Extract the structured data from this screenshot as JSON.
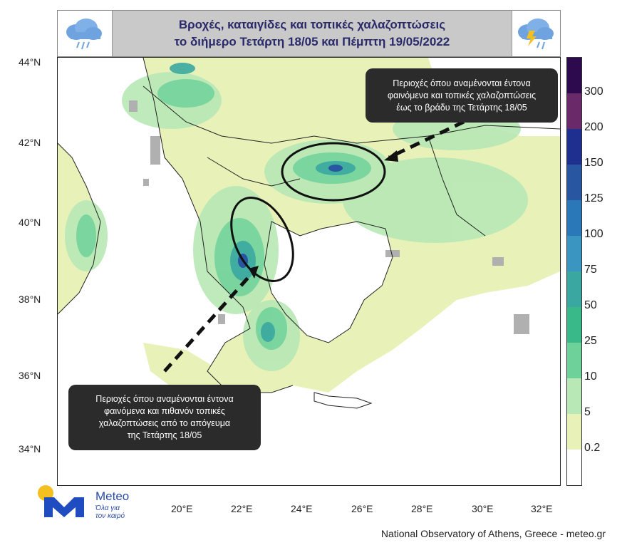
{
  "title": {
    "line1": "Βροχές, καταιγίδες και τοπικές χαλαζοπτώσεις",
    "line2": "το διήμερο Τετάρτη 18/05 και Πέμπτη 19/05/2022"
  },
  "icons": {
    "left": "rain-cloud-icon",
    "right": "storm-cloud-icon"
  },
  "axes": {
    "latitudes": [
      "44°N",
      "42°N",
      "40°N",
      "38°N",
      "36°N",
      "34°N"
    ],
    "longitudes": [
      "20°E",
      "22°E",
      "24°E",
      "26°E",
      "28°E",
      "30°E",
      "32°E"
    ]
  },
  "colorbar": {
    "labels": [
      "300",
      "200",
      "150",
      "125",
      "100",
      "75",
      "50",
      "25",
      "10",
      "5",
      "0.2"
    ],
    "colors": [
      "#2d0a4e",
      "#6a2a6a",
      "#1f2f8f",
      "#2856a0",
      "#2a78b8",
      "#3a96c0",
      "#3aa8a0",
      "#39b88a",
      "#6fd19a",
      "#b7e8b5",
      "#e8f2b8",
      "#ffffff"
    ]
  },
  "callouts": {
    "northeast": [
      "Περιοχές όπου αναμένονται έντονα",
      "φαινόμενα και τοπικές χαλαζοπτώσεις",
      "έως το βράδυ της Τετάρτης 18/05"
    ],
    "southwest": [
      "Περιοχές όπου αναμένονται έντονα",
      "φαινόμενα και πιθανόν τοπικές",
      "χαλαζοπτώσεις από το απόγευμα",
      "της Τετάρτης 18/05"
    ]
  },
  "logo": {
    "name": "Meteo",
    "tagline1": "Όλα για",
    "tagline2": "τον καιρό"
  },
  "footer": "National Observatory of Athens, Greece - meteo.gr"
}
